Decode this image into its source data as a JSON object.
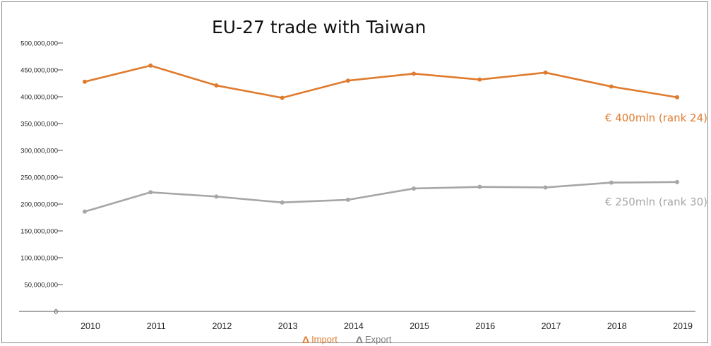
{
  "chart_data": {
    "type": "line",
    "title": "EU-27 trade with Taiwan",
    "categories": [
      "2010",
      "2011",
      "2012",
      "2013",
      "2014",
      "2015",
      "2016",
      "2017",
      "2018",
      "2019"
    ],
    "ylim": [
      0,
      500000000
    ],
    "yticks": [
      0,
      50000000,
      100000000,
      150000000,
      200000000,
      250000000,
      300000000,
      350000000,
      400000000,
      450000000,
      500000000
    ],
    "ytick_labels": [
      "0",
      "50,000,000",
      "100,000,000",
      "150,000,000",
      "200,000,000",
      "250,000,000",
      "300,000,000",
      "350,000,000",
      "400,000,000",
      "450,000,000",
      "500,000,000"
    ],
    "grid": false,
    "legend_position": "bottom-center",
    "series": [
      {
        "name": "Import",
        "color": "#e07b2e",
        "values": [
          428000000,
          458000000,
          421000000,
          398000000,
          430000000,
          443000000,
          432000000,
          445000000,
          419000000,
          399000000
        ],
        "annotation": "€ 400mln (rank 24)"
      },
      {
        "name": "Export",
        "color": "#a6a6a6",
        "values": [
          186000000,
          222000000,
          214000000,
          203000000,
          208000000,
          229000000,
          232000000,
          231000000,
          240000000,
          241000000
        ],
        "annotation": "€ 250mln (rank 30)"
      }
    ]
  },
  "legend": {
    "symbol": "Δ"
  }
}
